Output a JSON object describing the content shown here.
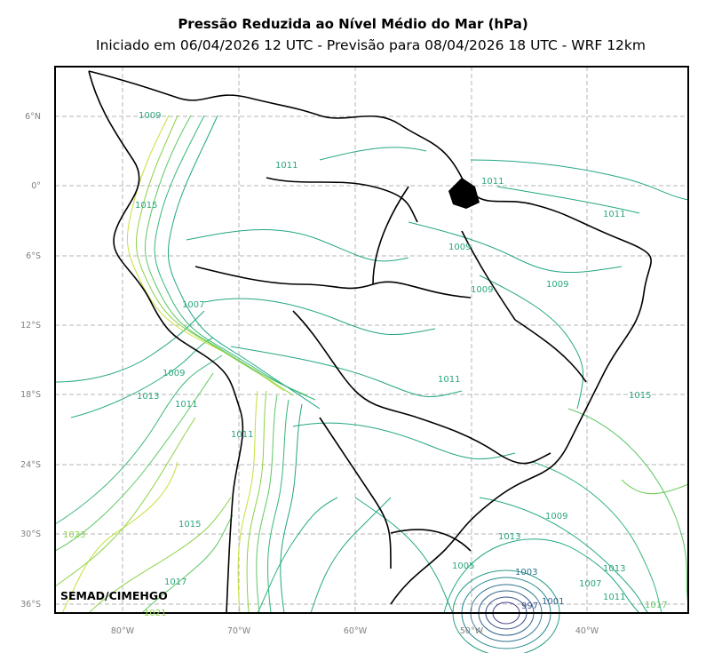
{
  "header": {
    "title": "Pressão Reduzida ao Nível Médio do Mar (hPa)",
    "subtitle": "Iniciado em 06/04/2026 12 UTC - Previsão para 08/04/2026 18 UTC - WRF 12km"
  },
  "map": {
    "lat_ticks": [
      "6°N",
      "0°",
      "6°S",
      "12°S",
      "18°S",
      "24°S",
      "30°S",
      "36°S"
    ],
    "lon_ticks": [
      "80°W",
      "70°W",
      "60°W",
      "50°W",
      "40°W"
    ],
    "contour_labels": [
      "1009",
      "1015",
      "1007",
      "1009",
      "1013",
      "1011",
      "1011",
      "1015",
      "1017",
      "1021",
      "1023",
      "1011",
      "1009",
      "1011",
      "1009",
      "1009",
      "1011",
      "1015",
      "1013",
      "1011",
      "1009",
      "1005",
      "1003",
      "1001",
      "997",
      "1007",
      "1013",
      "1011",
      "1017"
    ],
    "watermark": "SEMAD/CIMEHGO"
  },
  "colors": {
    "low_pressure": "#3b4f8c",
    "mid_pressure": "#21a685",
    "high_pressure": "#9bd93c",
    "borders": "#000000",
    "grid": "#b0b0b0"
  }
}
